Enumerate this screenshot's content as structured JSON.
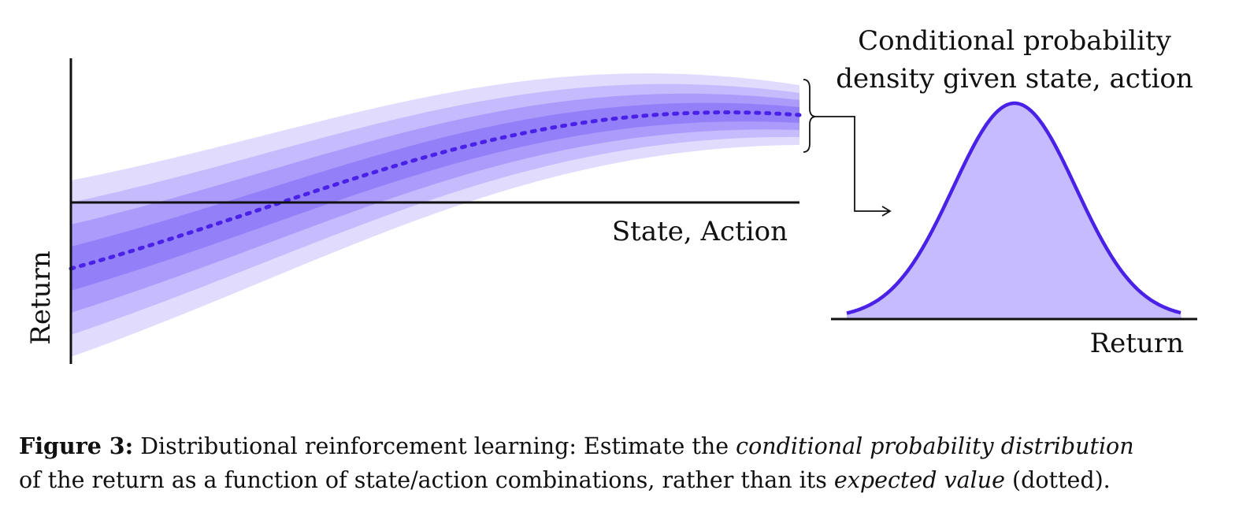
{
  "diagram": {
    "left_plot": {
      "x_axis_label": "State, Action",
      "y_axis_label": "Return"
    },
    "right_plot": {
      "title_line1": "Conditional probability",
      "title_line2": "density given state, action",
      "x_axis_label": "Return"
    },
    "colors": {
      "band_outer": "#e1dbfe",
      "band_2": "#c6bbfd",
      "band_3": "#ac9bfb",
      "band_inner": "#9380f9",
      "mean_line": "#4a21e6",
      "density_fill": "#c6bbfd",
      "density_stroke": "#4a21e6",
      "axis": "#111111"
    }
  },
  "caption": {
    "label": "Figure 3:",
    "part1": " Distributional reinforcement learning: Estimate the ",
    "emph1": "conditional probability distribution",
    "part2": "of the return as a function of state/action combinations, rather than its ",
    "emph2": "expected value",
    "part3": " (dotted)."
  }
}
